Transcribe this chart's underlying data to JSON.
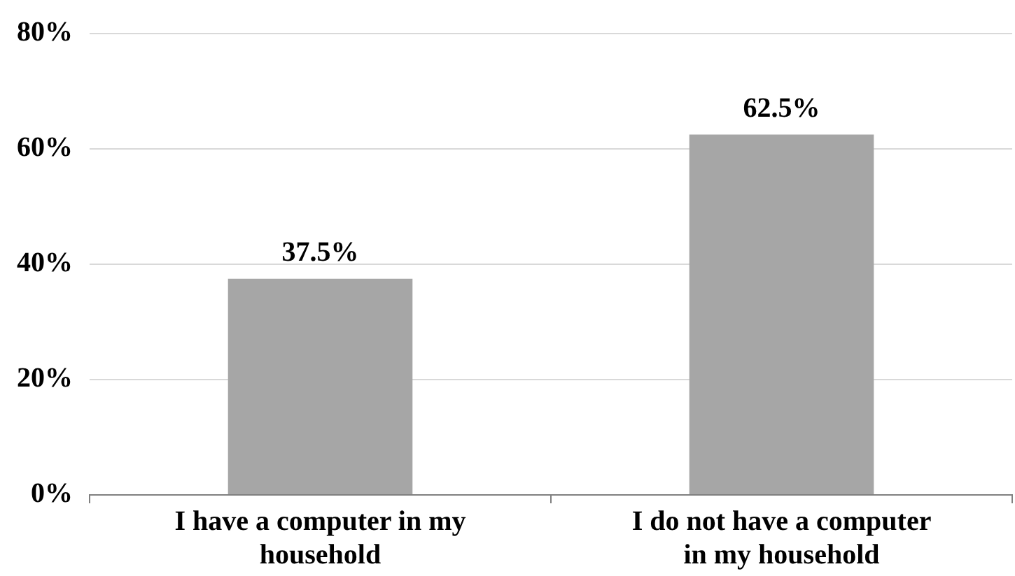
{
  "chart_data": {
    "type": "bar",
    "categories": [
      "I have a computer in my household",
      "I do not have a computer in my household"
    ],
    "values": [
      37.5,
      62.5
    ],
    "color": "#a6a6a6",
    "ylim": [
      0,
      80
    ],
    "yticks": [
      {
        "value": 0,
        "label": "0%"
      },
      {
        "value": 20,
        "label": "20%"
      },
      {
        "value": 40,
        "label": "40%"
      },
      {
        "value": 60,
        "label": "60%"
      },
      {
        "value": 80,
        "label": "80%"
      }
    ],
    "value_labels": [
      "37.5%",
      "62.5%"
    ],
    "grid": "y",
    "legend": false
  }
}
